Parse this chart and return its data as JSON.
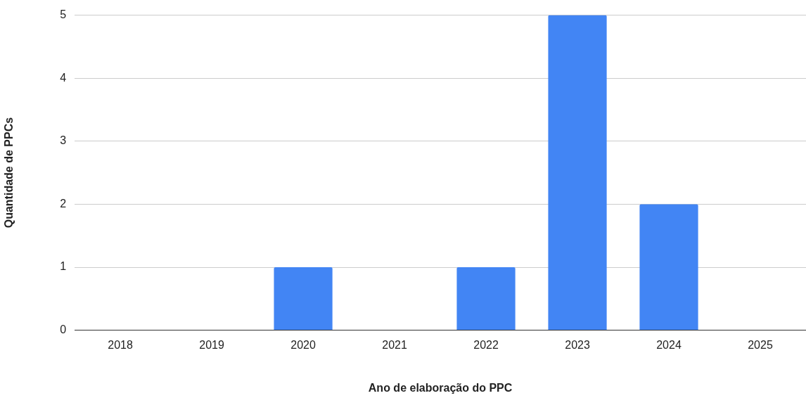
{
  "chart_data": {
    "type": "bar",
    "xlabel": "Ano de elaboração do PPC",
    "ylabel": "Quantidade de PPCs",
    "categories": [
      "2018",
      "2019",
      "2020",
      "2021",
      "2022",
      "2023",
      "2024",
      "2025"
    ],
    "values": [
      0,
      0,
      1,
      0,
      1,
      5,
      2,
      0
    ],
    "color": "#4285f4",
    "ylim": [
      0,
      5
    ],
    "yticks": [
      0,
      1,
      2,
      3,
      4,
      5
    ],
    "grid": "y"
  }
}
